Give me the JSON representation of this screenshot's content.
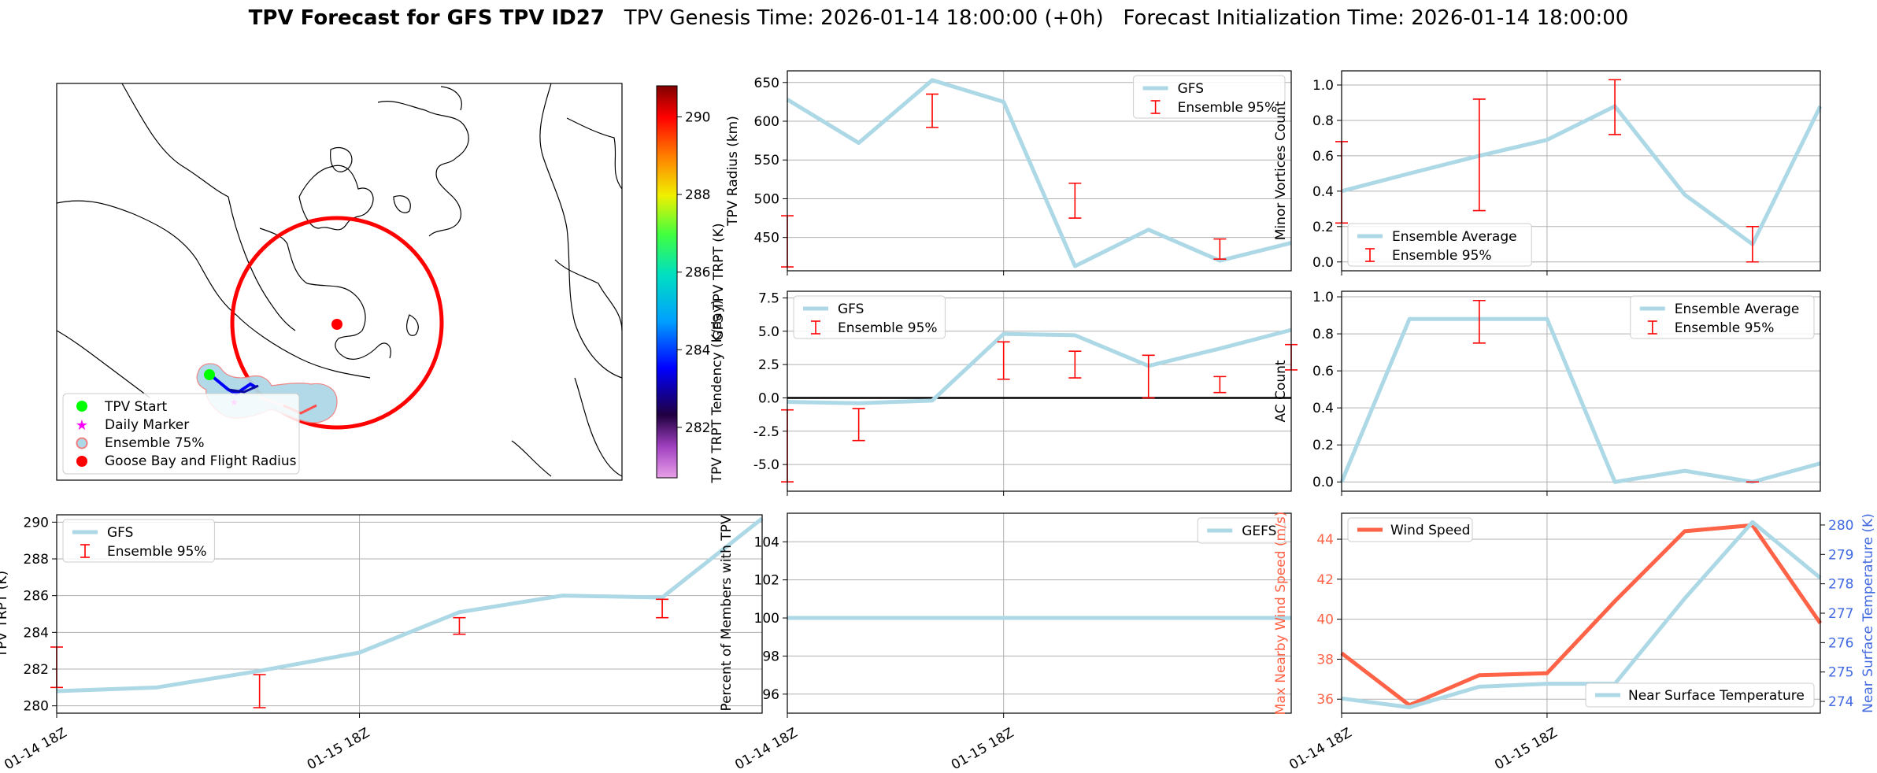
{
  "header": {
    "title_bold": "TPV Forecast for GFS TPV ID27",
    "genesis": "TPV Genesis Time: 2026-01-14 18:00:00 (+0h)",
    "init": "Forecast Initialization Time: 2026-01-14 18:00:00"
  },
  "colors": {
    "line": "#add8e6",
    "err": "#ff0000",
    "wind": "#ff6347",
    "temp_axis": "#4169e1",
    "grid": "#b0b0b0"
  },
  "time_ticks": [
    "01-14 18Z",
    "01-15 18Z"
  ],
  "map": {
    "legend": [
      "TPV Start",
      "Daily Marker",
      "Ensemble 75%",
      "Goose Bay and Flight Radius"
    ],
    "colorbar": {
      "label": "GFS TPV TRPT (K)",
      "ticks": [
        282,
        284,
        286,
        288,
        290
      ],
      "min": 280.7,
      "max": 290.8
    }
  },
  "chart_data": [
    {
      "id": "trpt",
      "type": "line",
      "ylabel": "TPV TRPT (K)",
      "ylim": [
        279.6,
        290.4
      ],
      "yticks": [
        280,
        282,
        284,
        286,
        288,
        290
      ],
      "x": [
        0,
        0.33,
        0.67,
        1,
        1.33,
        1.67,
        2,
        2.33
      ],
      "series": [
        {
          "name": "GFS",
          "values": [
            280.8,
            281.0,
            281.9,
            282.9,
            285.1,
            286.0,
            285.9,
            290.2
          ]
        }
      ],
      "errorbars": {
        "name": "Ensemble 95%",
        "x": [
          0,
          0.67,
          1.33,
          2
        ],
        "low": [
          281.0,
          279.9,
          283.9,
          284.8
        ],
        "high": [
          283.2,
          281.7,
          284.8,
          285.8
        ]
      },
      "legend": [
        "GFS",
        "Ensemble 95%"
      ]
    },
    {
      "id": "radius",
      "type": "line",
      "ylabel": "TPV Radius (km)",
      "ylim": [
        407,
        665
      ],
      "yticks": [
        450,
        500,
        550,
        600,
        650
      ],
      "x": [
        0,
        0.33,
        0.67,
        1,
        1.33,
        1.67,
        2,
        2.33
      ],
      "series": [
        {
          "name": "GFS",
          "values": [
            628,
            572,
            653,
            625,
            413,
            460,
            420,
            443
          ]
        }
      ],
      "errorbars": {
        "name": "Ensemble 95%",
        "x": [
          0,
          0.67,
          1.33,
          2
        ],
        "low": [
          412,
          592,
          475,
          422
        ],
        "high": [
          478,
          635,
          520,
          448
        ]
      },
      "legend": [
        "GFS",
        "Ensemble 95%"
      ]
    },
    {
      "id": "tendency",
      "type": "line",
      "ylabel": "TPV TRPT Tendency (K/day)",
      "ylim": [
        -7.0,
        8.0
      ],
      "yticks": [
        -5.0,
        -2.5,
        0.0,
        2.5,
        5.0,
        7.5
      ],
      "x": [
        0,
        0.33,
        0.67,
        1,
        1.33,
        1.67,
        2,
        2.33
      ],
      "series": [
        {
          "name": "GFS",
          "values": [
            -0.3,
            -0.4,
            -0.2,
            4.8,
            4.7,
            2.4,
            3.7,
            5.1
          ]
        }
      ],
      "errorbars": {
        "name": "Ensemble 95%",
        "x": [
          0,
          0.33,
          1,
          1.33,
          1.67,
          2,
          2.33
        ],
        "low": [
          -6.3,
          -3.2,
          1.4,
          1.5,
          0.0,
          0.4,
          2.1
        ],
        "high": [
          -0.9,
          -0.8,
          4.2,
          3.5,
          3.2,
          1.6,
          4.0
        ]
      },
      "hline": 0,
      "legend": [
        "GFS",
        "Ensemble 95%"
      ]
    },
    {
      "id": "members",
      "type": "line",
      "ylabel": "Percent of Members with TPV",
      "ylim": [
        95,
        105.5
      ],
      "yticks": [
        96,
        98,
        100,
        102,
        104
      ],
      "x": [
        0,
        0.33,
        0.67,
        1,
        1.33,
        1.67,
        2,
        2.33
      ],
      "series": [
        {
          "name": "GEFS",
          "values": [
            100,
            100,
            100,
            100,
            100,
            100,
            100,
            100
          ]
        }
      ],
      "legend": [
        "GEFS"
      ]
    },
    {
      "id": "minor",
      "type": "line",
      "ylabel": "Minor Vortices Count",
      "ylim": [
        -0.05,
        1.08
      ],
      "yticks": [
        0.0,
        0.2,
        0.4,
        0.6,
        0.8,
        1.0
      ],
      "x": [
        0,
        0.33,
        0.67,
        1,
        1.33,
        1.67,
        2,
        2.33
      ],
      "series": [
        {
          "name": "Ensemble Average",
          "values": [
            0.4,
            0.5,
            0.6,
            0.69,
            0.88,
            0.38,
            0.1,
            0.88
          ]
        }
      ],
      "errorbars": {
        "name": "Ensemble 95%",
        "x": [
          0,
          0.67,
          1.33,
          2
        ],
        "low": [
          0.22,
          0.29,
          0.72,
          0.0
        ],
        "high": [
          0.68,
          0.92,
          1.03,
          0.2
        ]
      },
      "legend": [
        "Ensemble Average",
        "Ensemble 95%"
      ]
    },
    {
      "id": "ac",
      "type": "line",
      "ylabel": "AC Count",
      "ylim": [
        -0.05,
        1.03
      ],
      "yticks": [
        0.0,
        0.2,
        0.4,
        0.6,
        0.8,
        1.0
      ],
      "x": [
        0,
        0.33,
        0.67,
        1,
        1.33,
        1.67,
        2,
        2.33
      ],
      "series": [
        {
          "name": "Ensemble Average",
          "values": [
            0.0,
            0.88,
            0.88,
            0.88,
            0.0,
            0.06,
            0.0,
            0.1
          ]
        }
      ],
      "errorbars": {
        "name": "Ensemble 95%",
        "x": [
          0.67,
          2
        ],
        "low": [
          0.75,
          0.0
        ],
        "high": [
          0.98,
          0.0
        ]
      },
      "legend": [
        "Ensemble Average",
        "Ensemble 95%"
      ]
    },
    {
      "id": "wind",
      "type": "line",
      "ylabel": "Max Nearby Wind Speed (m/s)",
      "ylabel2": "Near Surface Temperature (K)",
      "ylim": [
        35.3,
        45.3
      ],
      "yticks": [
        36,
        38,
        40,
        42,
        44
      ],
      "ylim2": [
        273.6,
        280.4
      ],
      "yticks2": [
        274,
        275,
        276,
        277,
        278,
        279,
        280
      ],
      "x": [
        0,
        0.33,
        0.67,
        1,
        1.33,
        1.67,
        2,
        2.33
      ],
      "series": [
        {
          "name": "Wind Speed",
          "axis": "left",
          "values": [
            38.3,
            35.7,
            37.2,
            37.3,
            40.9,
            44.4,
            44.7,
            39.8
          ]
        },
        {
          "name": "Near Surface Temperature",
          "axis": "right",
          "values": [
            274.1,
            273.8,
            274.5,
            274.6,
            274.6,
            277.5,
            280.1,
            278.2
          ]
        }
      ],
      "legend": [
        "Wind Speed",
        "Near Surface Temperature"
      ]
    }
  ]
}
